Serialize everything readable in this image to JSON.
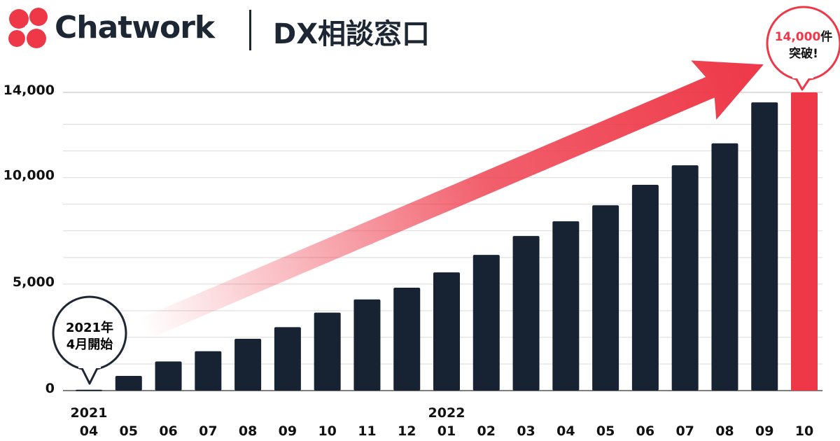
{
  "header": {
    "brand": "Chatwork",
    "subtitle": "DX相談窓口"
  },
  "callouts": {
    "start": {
      "line1": "2021年",
      "line2": "4月開始"
    },
    "end": {
      "number": "14,000",
      "suffix": "件",
      "line2": "突破!"
    }
  },
  "colors": {
    "bar": "#172232",
    "highlight": "#ee3848",
    "grid": "#d9d9d9"
  },
  "chart_data": {
    "type": "bar",
    "title": "",
    "xlabel": "",
    "ylabel": "",
    "ylim": [
      0,
      14000
    ],
    "yticks": [
      0,
      5000,
      10000,
      14000
    ],
    "ytick_labels": [
      "0",
      "5,000",
      "10,000",
      "14,000"
    ],
    "grid": true,
    "year_labels": [
      {
        "index": 0,
        "label": "2021"
      },
      {
        "index": 9,
        "label": "2022"
      }
    ],
    "categories": [
      "04",
      "05",
      "06",
      "07",
      "08",
      "09",
      "10",
      "11",
      "12",
      "01",
      "02",
      "03",
      "04",
      "05",
      "06",
      "07",
      "08",
      "09",
      "10"
    ],
    "values": [
      40,
      690,
      1370,
      1850,
      2430,
      2980,
      3660,
      4280,
      4830,
      5550,
      6370,
      7260,
      7950,
      8700,
      9660,
      10580,
      11610,
      13530,
      14000
    ],
    "highlight_index": 18,
    "annotations": [
      "2021年4月開始",
      "14,000件突破!"
    ]
  }
}
